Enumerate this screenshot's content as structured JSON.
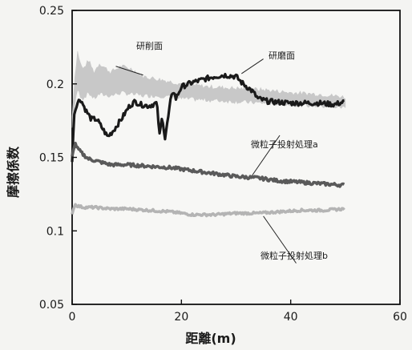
{
  "chart_data": {
    "type": "line",
    "xlabel": "距離(m)",
    "ylabel": "摩擦係数",
    "xlim": [
      0,
      60
    ],
    "ylim": [
      0.05,
      0.25
    ],
    "xticks": [
      "0",
      "20",
      "40",
      "60"
    ],
    "yticks": [
      "0.05",
      "0.1",
      "0.15",
      "0.2",
      "0.25"
    ],
    "grid": false,
    "series": [
      {
        "name": "研削面",
        "style": "band",
        "color": "#c8c8c8",
        "x": [
          0,
          0.5,
          1.0,
          1.5,
          2,
          3,
          4,
          5,
          7,
          9,
          11,
          13,
          16,
          20,
          25,
          30,
          35,
          40,
          45,
          50
        ],
        "upper": [
          0.178,
          0.205,
          0.222,
          0.214,
          0.21,
          0.216,
          0.208,
          0.214,
          0.208,
          0.212,
          0.21,
          0.205,
          0.203,
          0.2,
          0.198,
          0.197,
          0.196,
          0.194,
          0.193,
          0.191
        ],
        "lower": [
          0.17,
          0.186,
          0.196,
          0.192,
          0.19,
          0.194,
          0.19,
          0.193,
          0.192,
          0.194,
          0.193,
          0.192,
          0.192,
          0.19,
          0.189,
          0.188,
          0.187,
          0.186,
          0.185,
          0.184
        ]
      },
      {
        "name": "研磨面",
        "color": "#1a1a1a",
        "x": [
          0,
          0.3,
          0.8,
          1.5,
          2.5,
          3.5,
          4.5,
          5.5,
          6.5,
          7.5,
          9,
          10.5,
          11.5,
          12.5,
          14,
          15.5,
          16.0,
          16.5,
          17,
          17.5,
          18,
          18.5,
          19,
          20,
          22,
          24,
          26,
          28,
          30,
          31,
          33,
          34,
          36,
          40,
          45,
          48,
          50
        ],
        "y": [
          0.146,
          0.178,
          0.186,
          0.19,
          0.182,
          0.176,
          0.176,
          0.17,
          0.164,
          0.168,
          0.176,
          0.185,
          0.188,
          0.186,
          0.185,
          0.187,
          0.165,
          0.178,
          0.163,
          0.175,
          0.188,
          0.196,
          0.19,
          0.198,
          0.201,
          0.203,
          0.205,
          0.206,
          0.205,
          0.201,
          0.195,
          0.19,
          0.188,
          0.187,
          0.187,
          0.186,
          0.188
        ]
      },
      {
        "name": "微粒子投射処理a",
        "color": "#5a5a5a",
        "x": [
          0,
          0.5,
          1,
          2,
          3,
          5,
          7,
          10,
          14,
          18,
          22,
          26,
          30,
          34,
          38,
          42,
          46,
          50
        ],
        "y": [
          0.15,
          0.16,
          0.156,
          0.152,
          0.149,
          0.147,
          0.145,
          0.145,
          0.144,
          0.143,
          0.141,
          0.139,
          0.137,
          0.136,
          0.134,
          0.133,
          0.132,
          0.131
        ]
      },
      {
        "name": "微粒子投射処理b",
        "color": "#b4b4b4",
        "x": [
          0,
          0.5,
          1,
          2,
          4,
          7,
          10,
          14,
          18,
          22,
          26,
          30,
          34,
          38,
          42,
          46,
          50
        ],
        "y": [
          0.112,
          0.118,
          0.117,
          0.116,
          0.116,
          0.115,
          0.115,
          0.114,
          0.113,
          0.111,
          0.111,
          0.112,
          0.112,
          0.113,
          0.114,
          0.114,
          0.115
        ]
      }
    ],
    "annotations": [
      {
        "text": "研削面"
      },
      {
        "text": "研磨面"
      },
      {
        "text": "微粒子投射処理a"
      },
      {
        "text": "微粒子投射処理b"
      }
    ]
  }
}
